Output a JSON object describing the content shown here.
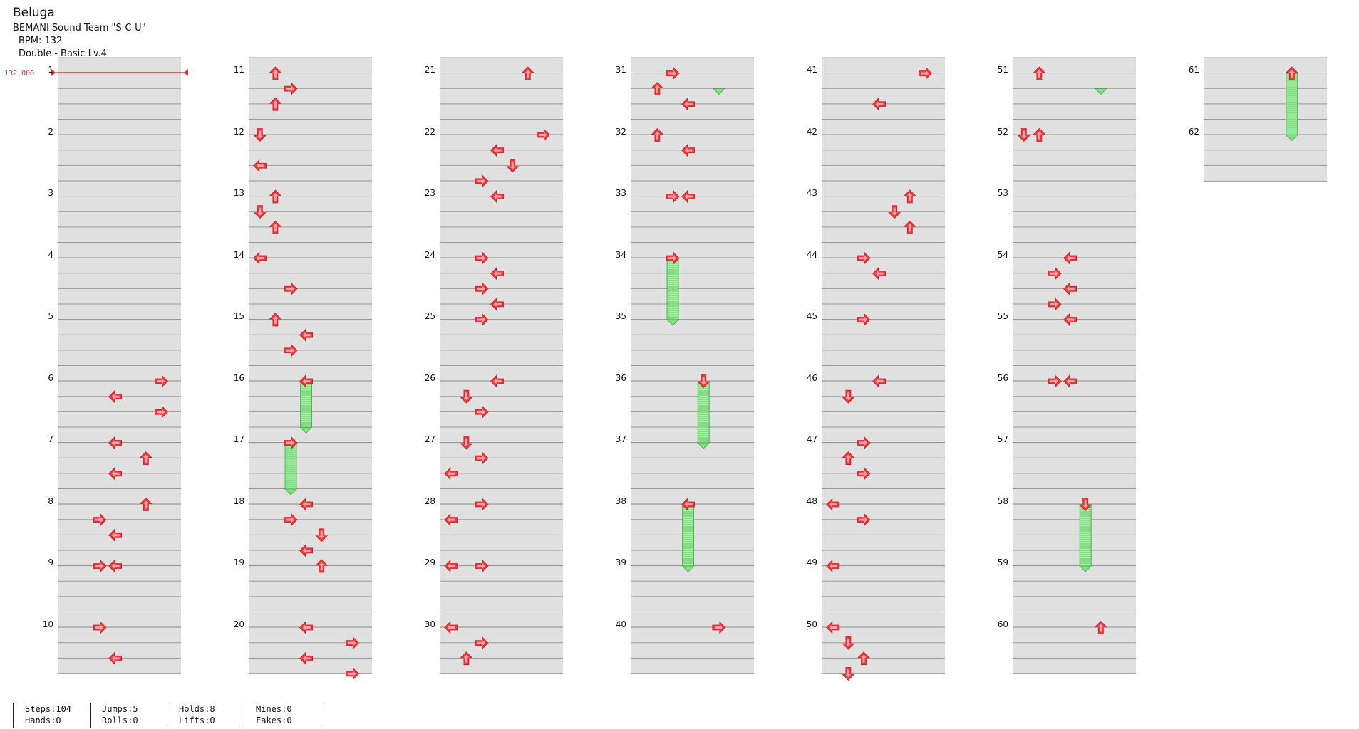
{
  "song": {
    "title": "Beluga",
    "artist": "BEMANI Sound Team \"S-C-U\"",
    "bpm_label": "BPM: 132",
    "difficulty": "Double - Basic  Lv.4"
  },
  "bpm_marker": "132.000",
  "measures": [
    "1",
    "2",
    "3",
    "4",
    "5",
    "6",
    "7",
    "8",
    "9",
    "10",
    "11",
    "12",
    "13",
    "14",
    "15",
    "16",
    "17",
    "18",
    "19",
    "20",
    "21",
    "22",
    "23",
    "24",
    "25",
    "26",
    "27",
    "28",
    "29",
    "30",
    "31",
    "32",
    "33",
    "34",
    "35",
    "36",
    "37",
    "38",
    "39",
    "40",
    "41",
    "42",
    "43",
    "44",
    "45",
    "46",
    "47",
    "48",
    "49",
    "50",
    "51",
    "52",
    "53",
    "54",
    "55",
    "56",
    "57",
    "58",
    "59",
    "60",
    "61",
    "62"
  ],
  "stats": {
    "steps": "Steps:104",
    "hands": "Hands:0",
    "jumps": "Jumps:5",
    "rolls": "Rolls:0",
    "holds": "Holds:8",
    "lifts": "Lifts:0",
    "mines": "Mines:0",
    "fakes": "Fakes:0"
  },
  "colors": {
    "arrow": "#f0353f",
    "hold": "#7ee07e",
    "bpm": "#e0303a",
    "band": "#e0e0e0"
  }
}
